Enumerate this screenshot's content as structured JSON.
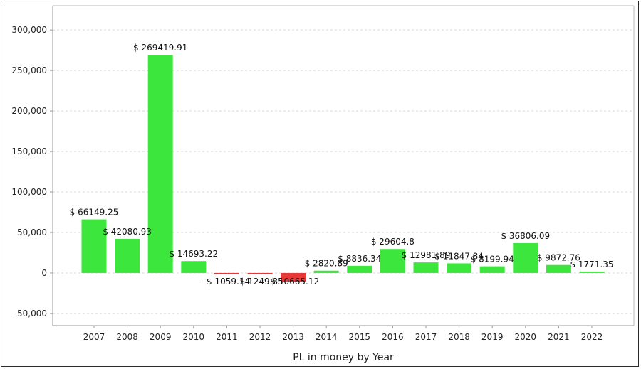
{
  "chart_data": {
    "type": "bar",
    "title": "",
    "xlabel": "PL in money by Year",
    "ylabel": "",
    "ylim": [
      -65000,
      330000
    ],
    "yticks": [
      -50000,
      0,
      50000,
      100000,
      150000,
      200000,
      250000,
      300000
    ],
    "ytick_labels": [
      "-50,000",
      "0",
      "50,000",
      "100,000",
      "150,000",
      "200,000",
      "250,000",
      "300,000"
    ],
    "grid": true,
    "categories": [
      "2007",
      "2008",
      "2009",
      "2010",
      "2011",
      "2012",
      "2013",
      "2014",
      "2015",
      "2016",
      "2017",
      "2018",
      "2019",
      "2020",
      "2021",
      "2022"
    ],
    "values": [
      66149.25,
      42080.93,
      269419.91,
      14693.22,
      -1059.14,
      -1249.85,
      -10665.12,
      2820.89,
      8836.34,
      29604.8,
      12981.89,
      11847.84,
      8199.94,
      36806.09,
      9872.76,
      1771.35
    ],
    "data_labels": [
      "$ 66149.25",
      "$ 42080.93",
      "$ 269419.91",
      "$ 14693.22",
      "-$ 1059.14",
      "-$ 1249.85",
      "-$ 10665.12",
      "$ 2820.89",
      "$ 8836.34",
      "$ 29604.8",
      "$ 12981.89",
      "$ 11847.84",
      "$ 8199.94",
      "$ 36806.09",
      "$ 9872.76",
      "$ 1771.35"
    ],
    "colors": {
      "positive": "#3de63d",
      "negative": "#e63838",
      "grid": "#d9d9d9",
      "axis": "#999999"
    }
  }
}
